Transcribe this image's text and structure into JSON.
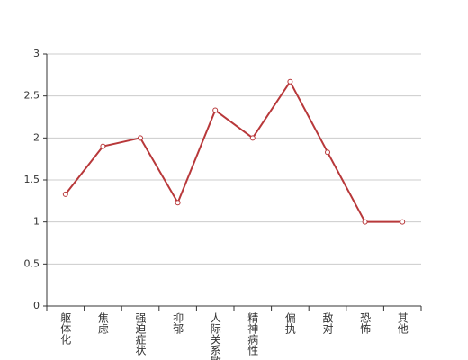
{
  "chart_data": {
    "type": "line",
    "categories": [
      "躯体化",
      "焦虑",
      "强迫症状",
      "抑郁",
      "人际关系敏感",
      "精神病性",
      "偏执",
      "敌对",
      "恐怖",
      "其他"
    ],
    "values": [
      1.33,
      1.9,
      2.0,
      1.23,
      2.33,
      2.0,
      2.67,
      1.83,
      1.0,
      1.0
    ],
    "color": "#b8383a",
    "ylim": [
      0,
      3
    ],
    "yticks": [
      0,
      0.5,
      1,
      1.5,
      2,
      2.5,
      3
    ],
    "grid": true
  }
}
